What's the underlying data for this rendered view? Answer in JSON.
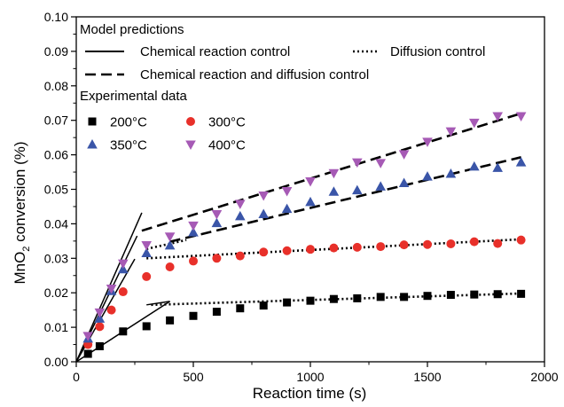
{
  "chart_data": {
    "type": "scatter",
    "xlabel": "Reaction time (s)",
    "ylabel_main": "MnO",
    "ylabel_sub": "2",
    "ylabel_tail": " conversion (%)",
    "xlim": [
      0,
      2000
    ],
    "ylim": [
      0,
      0.1
    ],
    "xticks": [
      0,
      500,
      1000,
      1500,
      2000
    ],
    "xtick_labels": [
      "0",
      "500",
      "1000",
      "1500",
      "2000"
    ],
    "yticks": [
      0,
      0.01,
      0.02,
      0.03,
      0.04,
      0.05,
      0.06,
      0.07,
      0.08,
      0.09,
      0.1
    ],
    "ytick_labels": [
      "0.00",
      "0.01",
      "0.02",
      "0.03",
      "0.04",
      "0.05",
      "0.06",
      "0.07",
      "0.08",
      "0.09",
      "0.10"
    ],
    "legend": {
      "model_heading": "Model predictions",
      "chem_label": "Chemical reaction control",
      "diff_label": "Diffusion control",
      "both_label": "Chemical reaction and diffusion control",
      "exp_heading": "Experimental data"
    },
    "series": [
      {
        "name": "200°C",
        "marker": "square",
        "color": "#000000",
        "x": [
          50,
          100,
          200,
          300,
          400,
          500,
          600,
          700,
          800,
          900,
          1000,
          1100,
          1200,
          1300,
          1400,
          1500,
          1600,
          1700,
          1800,
          1900
        ],
        "y": [
          0.0023,
          0.0045,
          0.0088,
          0.0103,
          0.012,
          0.0133,
          0.0145,
          0.0155,
          0.0163,
          0.0172,
          0.0177,
          0.0182,
          0.0184,
          0.0188,
          0.0188,
          0.0191,
          0.0194,
          0.0195,
          0.0196,
          0.0197
        ]
      },
      {
        "name": "300°C",
        "marker": "circle",
        "color": "#e8302a",
        "x": [
          50,
          100,
          150,
          200,
          300,
          400,
          500,
          600,
          700,
          800,
          900,
          1000,
          1100,
          1200,
          1300,
          1400,
          1500,
          1600,
          1700,
          1800,
          1900
        ],
        "y": [
          0.005,
          0.0102,
          0.015,
          0.0203,
          0.0247,
          0.0275,
          0.0292,
          0.03,
          0.0307,
          0.0318,
          0.0322,
          0.0326,
          0.033,
          0.0332,
          0.0334,
          0.0339,
          0.034,
          0.0342,
          0.0348,
          0.0343,
          0.0353
        ]
      },
      {
        "name": "350°C",
        "marker": "triangle-up",
        "color": "#3a55a8",
        "x": [
          50,
          100,
          150,
          200,
          300,
          400,
          500,
          600,
          700,
          800,
          900,
          1000,
          1100,
          1200,
          1300,
          1400,
          1500,
          1600,
          1700,
          1800,
          1900
        ],
        "y": [
          0.0067,
          0.0125,
          0.0205,
          0.0268,
          0.0315,
          0.0337,
          0.0375,
          0.0402,
          0.0422,
          0.0428,
          0.0443,
          0.0463,
          0.0493,
          0.0497,
          0.0508,
          0.0518,
          0.0537,
          0.0545,
          0.0566,
          0.0562,
          0.0578
        ]
      },
      {
        "name": "400°C",
        "marker": "triangle-down",
        "color": "#a65ab5",
        "x": [
          50,
          100,
          150,
          200,
          300,
          400,
          500,
          600,
          700,
          800,
          900,
          1000,
          1100,
          1200,
          1300,
          1400,
          1500,
          1600,
          1700,
          1800,
          1900
        ],
        "y": [
          0.0075,
          0.0143,
          0.0212,
          0.0285,
          0.0338,
          0.0363,
          0.0395,
          0.0428,
          0.0458,
          0.0482,
          0.0495,
          0.0523,
          0.0547,
          0.0578,
          0.0576,
          0.0602,
          0.0638,
          0.0668,
          0.0693,
          0.0712,
          0.0712
        ]
      }
    ],
    "model_lines": [
      {
        "name": "chem-line-1",
        "style": "solid",
        "x": [
          0,
          280
        ],
        "y": [
          0,
          0.0432
        ]
      },
      {
        "name": "chem-line-2",
        "style": "solid",
        "x": [
          0,
          260
        ],
        "y": [
          0,
          0.0365
        ]
      },
      {
        "name": "chem-line-3",
        "style": "solid",
        "x": [
          0,
          250
        ],
        "y": [
          0,
          0.0298
        ]
      },
      {
        "name": "chem-line-4",
        "style": "solid",
        "x": [
          0,
          400
        ],
        "y": [
          0,
          0.0175
        ]
      },
      {
        "name": "chem-line-5",
        "style": "solid",
        "x": [
          300,
          400
        ],
        "y": [
          0.0165,
          0.0175
        ]
      },
      {
        "name": "diff-line-200",
        "style": "dotted",
        "x": [
          320,
          1900
        ],
        "y": [
          0.0165,
          0.0198
        ]
      },
      {
        "name": "diff-line-300",
        "style": "dotted",
        "x": [
          300,
          1900
        ],
        "y": [
          0.03,
          0.0355
        ]
      },
      {
        "name": "diff-line-350",
        "style": "dotted",
        "x": [
          300,
          470
        ],
        "y": [
          0.0327,
          0.0353
        ]
      },
      {
        "name": "both-line-350",
        "style": "dashed",
        "x": [
          400,
          1900
        ],
        "y": [
          0.0348,
          0.0593
        ]
      },
      {
        "name": "both-line-400",
        "style": "dashed",
        "x": [
          280,
          1900
        ],
        "y": [
          0.038,
          0.072
        ]
      }
    ]
  }
}
